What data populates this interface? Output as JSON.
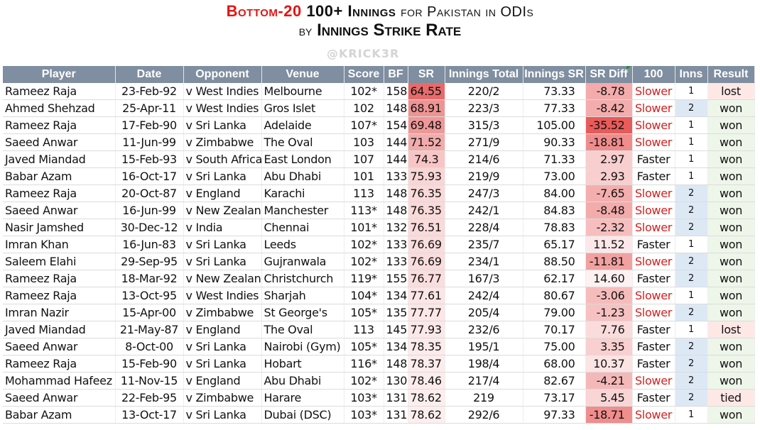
{
  "title": {
    "line1_red": "Bottom-20",
    "line1_bold": "100+ Innings",
    "line1_normal": "for Pakistan in ODIs",
    "line2_normal": "by",
    "line2_bold": "Innings Strike Rate"
  },
  "watermark": "@KRICK3R",
  "columns": [
    "Player",
    "Date",
    "Opponent",
    "Venue",
    "Score",
    "BF",
    "SR",
    "Innings Total",
    "Innings SR",
    "SR Diff",
    "100",
    "Inns",
    "Result"
  ],
  "rows": [
    {
      "player": "Rameez Raja",
      "date": "23-Feb-92",
      "opponent": "v West Indies",
      "venue": "Melbourne",
      "score": "102*",
      "bf": "158",
      "sr": "64.55",
      "total": "220/2",
      "innings_sr": "73.33",
      "diff": "-8.78",
      "hundred": "Slower",
      "inns": "1",
      "result": "lost"
    },
    {
      "player": "Ahmed Shehzad",
      "date": "25-Apr-11",
      "opponent": "v West Indies",
      "venue": "Gros Islet",
      "score": "102",
      "bf": "148",
      "sr": "68.91",
      "total": "223/3",
      "innings_sr": "77.33",
      "diff": "-8.42",
      "hundred": "Slower",
      "inns": "2",
      "result": "won"
    },
    {
      "player": "Rameez Raja",
      "date": "17-Feb-90",
      "opponent": "v Sri Lanka",
      "venue": "Adelaide",
      "score": "107*",
      "bf": "154",
      "sr": "69.48",
      "total": "315/3",
      "innings_sr": "105.00",
      "diff": "-35.52",
      "hundred": "Slower",
      "inns": "1",
      "result": "won"
    },
    {
      "player": "Saeed Anwar",
      "date": "11-Jun-99",
      "opponent": "v Zimbabwe",
      "venue": "The Oval",
      "score": "103",
      "bf": "144",
      "sr": "71.52",
      "total": "271/9",
      "innings_sr": "90.33",
      "diff": "-18.81",
      "hundred": "Slower",
      "inns": "1",
      "result": "won"
    },
    {
      "player": "Javed Miandad",
      "date": "15-Feb-93",
      "opponent": "v South Africa",
      "venue": "East London",
      "score": "107",
      "bf": "144",
      "sr": "74.3",
      "total": "214/6",
      "innings_sr": "71.33",
      "diff": "2.97",
      "hundred": "Faster",
      "inns": "1",
      "result": "won"
    },
    {
      "player": "Babar Azam",
      "date": "16-Oct-17",
      "opponent": "v Sri Lanka",
      "venue": "Abu Dhabi",
      "score": "101",
      "bf": "133",
      "sr": "75.93",
      "total": "219/9",
      "innings_sr": "73.00",
      "diff": "2.93",
      "hundred": "Faster",
      "inns": "1",
      "result": "won"
    },
    {
      "player": "Rameez Raja",
      "date": "20-Oct-87",
      "opponent": "v England",
      "venue": "Karachi",
      "score": "113",
      "bf": "148",
      "sr": "76.35",
      "total": "247/3",
      "innings_sr": "84.00",
      "diff": "-7.65",
      "hundred": "Slower",
      "inns": "2",
      "result": "won"
    },
    {
      "player": "Saeed Anwar",
      "date": "16-Jun-99",
      "opponent": "v New Zealand",
      "venue": "Manchester",
      "score": "113*",
      "bf": "148",
      "sr": "76.35",
      "total": "242/1",
      "innings_sr": "84.83",
      "diff": "-8.48",
      "hundred": "Slower",
      "inns": "2",
      "result": "won"
    },
    {
      "player": "Nasir Jamshed",
      "date": "30-Dec-12",
      "opponent": "v India",
      "venue": "Chennai",
      "score": "101*",
      "bf": "132",
      "sr": "76.51",
      "total": "228/4",
      "innings_sr": "78.83",
      "diff": "-2.32",
      "hundred": "Slower",
      "inns": "2",
      "result": "won"
    },
    {
      "player": "Imran Khan",
      "date": "16-Jun-83",
      "opponent": "v Sri Lanka",
      "venue": "Leeds",
      "score": "102*",
      "bf": "133",
      "sr": "76.69",
      "total": "235/7",
      "innings_sr": "65.17",
      "diff": "11.52",
      "hundred": "Faster",
      "inns": "1",
      "result": "won"
    },
    {
      "player": "Saleem Elahi",
      "date": "29-Sep-95",
      "opponent": "v Sri Lanka",
      "venue": "Gujranwala",
      "score": "102*",
      "bf": "133",
      "sr": "76.69",
      "total": "234/1",
      "innings_sr": "88.50",
      "diff": "-11.81",
      "hundred": "Slower",
      "inns": "2",
      "result": "won"
    },
    {
      "player": "Rameez Raja",
      "date": "18-Mar-92",
      "opponent": "v New Zealand",
      "venue": "Christchurch",
      "score": "119*",
      "bf": "155",
      "sr": "76.77",
      "total": "167/3",
      "innings_sr": "62.17",
      "diff": "14.60",
      "hundred": "Faster",
      "inns": "2",
      "result": "won"
    },
    {
      "player": "Rameez Raja",
      "date": "13-Oct-95",
      "opponent": "v West Indies",
      "venue": "Sharjah",
      "score": "104*",
      "bf": "134",
      "sr": "77.61",
      "total": "242/4",
      "innings_sr": "80.67",
      "diff": "-3.06",
      "hundred": "Slower",
      "inns": "1",
      "result": "won"
    },
    {
      "player": "Imran Nazir",
      "date": "15-Apr-00",
      "opponent": "v Zimbabwe",
      "venue": "St George's",
      "score": "105*",
      "bf": "135",
      "sr": "77.77",
      "total": "205/4",
      "innings_sr": "79.00",
      "diff": "-1.23",
      "hundred": "Slower",
      "inns": "2",
      "result": "won"
    },
    {
      "player": "Javed Miandad",
      "date": "21-May-87",
      "opponent": "v England",
      "venue": "The Oval",
      "score": "113",
      "bf": "145",
      "sr": "77.93",
      "total": "232/6",
      "innings_sr": "70.17",
      "diff": "7.76",
      "hundred": "Faster",
      "inns": "1",
      "result": "lost"
    },
    {
      "player": "Saeed Anwar",
      "date": "8-Oct-00",
      "opponent": "v Sri Lanka",
      "venue": "Nairobi (Gym)",
      "score": "105*",
      "bf": "134",
      "sr": "78.35",
      "total": "195/1",
      "innings_sr": "75.00",
      "diff": "3.35",
      "hundred": "Faster",
      "inns": "2",
      "result": "won"
    },
    {
      "player": "Rameez Raja",
      "date": "15-Feb-90",
      "opponent": "v Sri Lanka",
      "venue": "Hobart",
      "score": "116*",
      "bf": "148",
      "sr": "78.37",
      "total": "198/4",
      "innings_sr": "68.00",
      "diff": "10.37",
      "hundred": "Faster",
      "inns": "2",
      "result": "won"
    },
    {
      "player": "Mohammad Hafeez",
      "date": "11-Nov-15",
      "opponent": "v England",
      "venue": "Abu Dhabi",
      "score": "102*",
      "bf": "130",
      "sr": "78.46",
      "total": "217/4",
      "innings_sr": "82.67",
      "diff": "-4.21",
      "hundred": "Slower",
      "inns": "2",
      "result": "won"
    },
    {
      "player": "Saeed Anwar",
      "date": "22-Feb-95",
      "opponent": "v Zimbabwe",
      "venue": "Harare",
      "score": "103*",
      "bf": "131",
      "sr": "78.62",
      "total": "219",
      "innings_sr": "73.17",
      "diff": "5.45",
      "hundred": "Faster",
      "inns": "2",
      "result": "tied"
    },
    {
      "player": "Babar Azam",
      "date": "13-Oct-17",
      "opponent": "v Sri Lanka",
      "venue": "Dubai (DSC)",
      "score": "103*",
      "bf": "131",
      "sr": "78.62",
      "total": "292/6",
      "innings_sr": "97.33",
      "diff": "-18.71",
      "hundred": "Slower",
      "inns": "1",
      "result": "won"
    }
  ],
  "colors": {
    "header_bg": "#7f8ea0",
    "title_red": "#e41414",
    "slower_text": "#d62020",
    "sr_scale_low": "#e86a6a",
    "sr_scale_high": "#fdeeee",
    "diff_negative": "#e95a5a",
    "diff_positive": "#fdf1f1",
    "inns_2_bg": "#dde8f5",
    "result_won_bg": "#eef6ea",
    "result_lost_bg": "#fde8e6"
  }
}
